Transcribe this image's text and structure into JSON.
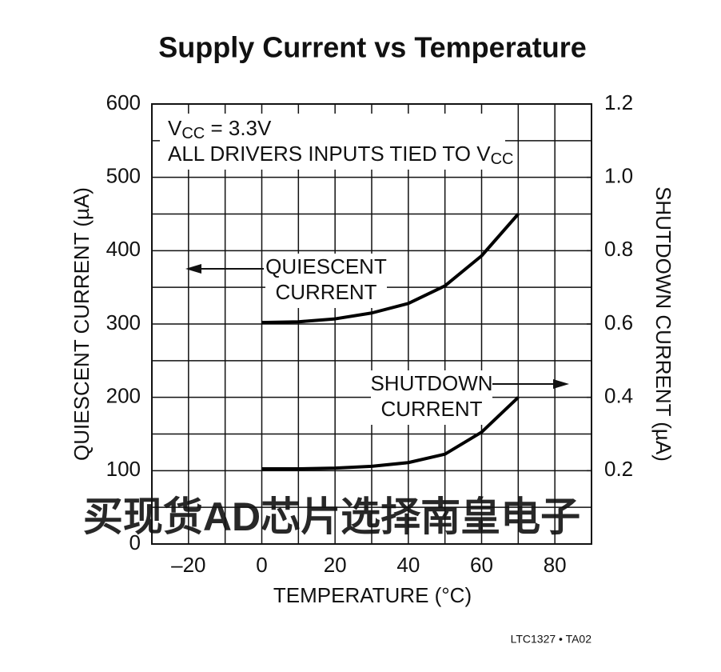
{
  "chart_data": {
    "type": "line",
    "title": "Supply Current vs Temperature",
    "xlabel": "TEMPERATURE (°C)",
    "ylabel": "QUIESCENT CURRENT (µA)",
    "y2label": "SHUTDOWN CURRENT (µA)",
    "condition": [
      [
        "V",
        "CC",
        " = 3.3V"
      ],
      [
        "ALL DRIVERS INPUTS TIED TO V",
        "CC"
      ]
    ],
    "series_labels": [
      [
        "QUIESCENT",
        "CURRENT"
      ],
      [
        "SHUTDOWN",
        "CURRENT"
      ]
    ],
    "x": [
      0,
      10,
      20,
      30,
      40,
      50,
      60,
      70
    ],
    "series": [
      {
        "name": "QUIESCENT CURRENT",
        "color": "#000000",
        "values": [
          302,
          303,
          307,
          315,
          328,
          352,
          393,
          450
        ]
      },
      {
        "name": "SHUTDOWN CURRENT",
        "color": "#000000",
        "axis": "y2",
        "values": [
          0.205,
          0.205,
          0.207,
          0.212,
          0.222,
          0.245,
          0.305,
          0.4
        ]
      }
    ],
    "xlim": [
      -30,
      90
    ],
    "xticks": [
      {
        "value": -20,
        "label": "–20"
      },
      0,
      20,
      40,
      60,
      80
    ],
    "xgrid": [
      -10,
      10,
      30,
      50,
      70
    ],
    "ylim": [
      0,
      600
    ],
    "yticks": [
      0,
      100,
      200,
      300,
      400,
      500,
      600
    ],
    "ygrid": [
      50,
      150,
      250,
      350,
      450,
      550
    ],
    "y2lim": [
      0,
      1.2
    ],
    "y2ticks": [
      0.2,
      0.4,
      0.6,
      0.8,
      {
        "value": 1,
        "label": "1.0"
      },
      1.2
    ],
    "grid": true,
    "watermark": "买现货AD芯片选择南皇电子",
    "footnote": "LTC1327 • TA02"
  }
}
